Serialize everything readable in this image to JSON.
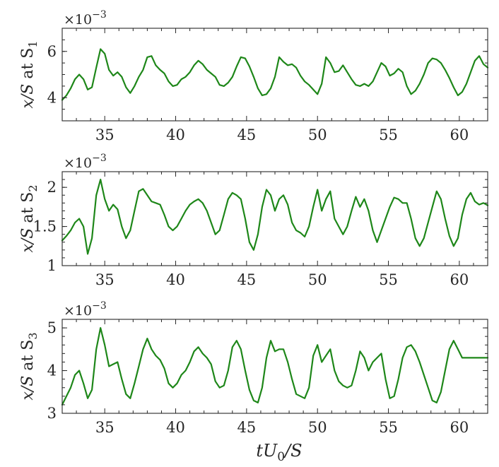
{
  "figure": {
    "xlabel_parts": [
      "tU",
      "0",
      "/S"
    ],
    "series_color": "#1e8719",
    "axis_color": "#262626"
  },
  "chart_data": [
    {
      "type": "line",
      "ylabel_parts": [
        "x/S",
        " at S",
        "1"
      ],
      "exponent_parts": [
        "×10",
        "−3"
      ],
      "xlim": [
        32,
        62
      ],
      "ylim": [
        3,
        7
      ],
      "x_ticks": [
        35,
        40,
        45,
        50,
        55,
        60
      ],
      "x_tick_labels": [
        "35",
        "40",
        "45",
        "50",
        "55",
        "60"
      ],
      "y_ticks": [
        4,
        6
      ],
      "y_tick_labels": [
        "4",
        "6"
      ],
      "grid": false,
      "x": [
        32.0,
        32.3,
        32.6,
        32.9,
        33.2,
        33.5,
        33.8,
        34.1,
        34.4,
        34.7,
        35.0,
        35.3,
        35.6,
        35.9,
        36.2,
        36.5,
        36.8,
        37.1,
        37.4,
        37.7,
        38.0,
        38.3,
        38.6,
        38.9,
        39.2,
        39.5,
        39.8,
        40.1,
        40.4,
        40.7,
        41.0,
        41.3,
        41.6,
        41.9,
        42.2,
        42.5,
        42.8,
        43.1,
        43.4,
        43.7,
        44.0,
        44.3,
        44.6,
        44.9,
        45.2,
        45.5,
        45.8,
        46.1,
        46.4,
        46.7,
        47.0,
        47.3,
        47.6,
        47.9,
        48.2,
        48.5,
        48.8,
        49.1,
        49.4,
        49.7,
        50.0,
        50.3,
        50.6,
        50.9,
        51.2,
        51.5,
        51.8,
        52.1,
        52.4,
        52.7,
        53.0,
        53.3,
        53.6,
        53.9,
        54.2,
        54.5,
        54.8,
        55.1,
        55.4,
        55.7,
        56.0,
        56.3,
        56.6,
        56.9,
        57.2,
        57.5,
        57.8,
        58.1,
        58.4,
        58.7,
        59.0,
        59.3,
        59.6,
        59.9,
        60.2,
        60.5,
        60.8,
        61.1,
        61.4,
        61.7,
        62.0
      ],
      "y": [
        3.9,
        4.1,
        4.4,
        4.8,
        5.0,
        4.8,
        4.35,
        4.45,
        5.3,
        6.1,
        5.9,
        5.2,
        4.95,
        5.1,
        4.9,
        4.45,
        4.2,
        4.5,
        4.9,
        5.2,
        5.75,
        5.8,
        5.4,
        5.2,
        5.05,
        4.7,
        4.5,
        4.55,
        4.8,
        4.9,
        5.1,
        5.4,
        5.6,
        5.45,
        5.2,
        5.05,
        4.9,
        4.55,
        4.5,
        4.65,
        4.9,
        5.35,
        5.75,
        5.7,
        5.35,
        4.9,
        4.4,
        4.1,
        4.15,
        4.4,
        4.9,
        5.75,
        5.55,
        5.4,
        5.45,
        5.3,
        4.95,
        4.7,
        4.55,
        4.35,
        4.15,
        4.6,
        5.75,
        5.5,
        5.1,
        5.15,
        5.4,
        5.1,
        4.8,
        4.55,
        4.5,
        4.6,
        4.5,
        4.7,
        5.1,
        5.5,
        5.35,
        4.95,
        5.05,
        5.25,
        5.1,
        4.5,
        4.15,
        4.3,
        4.6,
        5.0,
        5.5,
        5.7,
        5.65,
        5.5,
        5.2,
        4.85,
        4.45,
        4.1,
        4.25,
        4.6,
        5.1,
        5.6,
        5.8,
        5.45,
        5.3
      ]
    },
    {
      "type": "line",
      "ylabel_parts": [
        "x/S",
        " at S",
        "2"
      ],
      "exponent_parts": [
        "×10",
        "−3"
      ],
      "xlim": [
        32,
        62
      ],
      "ylim": [
        1,
        2.2
      ],
      "x_ticks": [
        35,
        40,
        45,
        50,
        55,
        60
      ],
      "x_tick_labels": [
        "35",
        "40",
        "45",
        "50",
        "55",
        "60"
      ],
      "y_ticks": [
        1,
        1.5,
        2
      ],
      "y_tick_labels": [
        "1",
        "1.5",
        "2"
      ],
      "grid": false,
      "x": [
        32.0,
        32.3,
        32.6,
        32.9,
        33.2,
        33.5,
        33.8,
        34.1,
        34.4,
        34.7,
        35.0,
        35.3,
        35.6,
        35.9,
        36.2,
        36.5,
        36.8,
        37.1,
        37.4,
        37.7,
        38.0,
        38.3,
        38.6,
        38.9,
        39.2,
        39.5,
        39.8,
        40.1,
        40.4,
        40.7,
        41.0,
        41.3,
        41.6,
        41.9,
        42.2,
        42.5,
        42.8,
        43.1,
        43.4,
        43.7,
        44.0,
        44.3,
        44.6,
        44.9,
        45.2,
        45.5,
        45.8,
        46.1,
        46.4,
        46.7,
        47.0,
        47.3,
        47.6,
        47.9,
        48.2,
        48.5,
        48.8,
        49.1,
        49.4,
        49.7,
        50.0,
        50.3,
        50.6,
        50.9,
        51.2,
        51.5,
        51.8,
        52.1,
        52.4,
        52.7,
        53.0,
        53.3,
        53.6,
        53.9,
        54.2,
        54.5,
        54.8,
        55.1,
        55.4,
        55.7,
        56.0,
        56.3,
        56.6,
        56.9,
        57.2,
        57.5,
        57.8,
        58.1,
        58.4,
        58.7,
        59.0,
        59.3,
        59.6,
        59.9,
        60.2,
        60.5,
        60.8,
        61.1,
        61.4,
        61.7,
        62.0
      ],
      "y": [
        1.32,
        1.38,
        1.45,
        1.55,
        1.6,
        1.5,
        1.15,
        1.35,
        1.9,
        2.1,
        1.85,
        1.7,
        1.78,
        1.72,
        1.5,
        1.35,
        1.45,
        1.7,
        1.95,
        1.98,
        1.9,
        1.82,
        1.8,
        1.78,
        1.65,
        1.5,
        1.45,
        1.5,
        1.6,
        1.7,
        1.78,
        1.82,
        1.85,
        1.8,
        1.7,
        1.55,
        1.4,
        1.45,
        1.65,
        1.85,
        1.93,
        1.9,
        1.85,
        1.6,
        1.3,
        1.2,
        1.4,
        1.75,
        1.97,
        1.9,
        1.7,
        1.85,
        1.9,
        1.78,
        1.55,
        1.45,
        1.42,
        1.37,
        1.5,
        1.75,
        1.97,
        1.7,
        1.85,
        1.95,
        1.6,
        1.5,
        1.4,
        1.5,
        1.7,
        1.88,
        1.75,
        1.85,
        1.7,
        1.45,
        1.3,
        1.45,
        1.6,
        1.75,
        1.87,
        1.85,
        1.8,
        1.8,
        1.6,
        1.35,
        1.25,
        1.35,
        1.55,
        1.75,
        1.95,
        1.85,
        1.6,
        1.38,
        1.25,
        1.35,
        1.65,
        1.85,
        1.93,
        1.82,
        1.78,
        1.8,
        1.77
      ]
    },
    {
      "type": "line",
      "ylabel_parts": [
        "x/S",
        " at S",
        "3"
      ],
      "exponent_parts": [
        "×10",
        "−3"
      ],
      "xlim": [
        32,
        62
      ],
      "ylim": [
        3,
        5.2
      ],
      "x_ticks": [
        35,
        40,
        45,
        50,
        55,
        60
      ],
      "x_tick_labels": [
        "35",
        "40",
        "45",
        "50",
        "55",
        "60"
      ],
      "y_ticks": [
        3,
        4,
        5
      ],
      "y_tick_labels": [
        "3",
        "4",
        "5"
      ],
      "grid": false,
      "x": [
        32.0,
        32.3,
        32.6,
        32.9,
        33.2,
        33.5,
        33.8,
        34.1,
        34.4,
        34.7,
        35.0,
        35.3,
        35.6,
        35.9,
        36.2,
        36.5,
        36.8,
        37.1,
        37.4,
        37.7,
        38.0,
        38.3,
        38.6,
        38.9,
        39.2,
        39.5,
        39.8,
        40.1,
        40.4,
        40.7,
        41.0,
        41.3,
        41.6,
        41.9,
        42.2,
        42.5,
        42.8,
        43.1,
        43.4,
        43.7,
        44.0,
        44.3,
        44.6,
        44.9,
        45.2,
        45.5,
        45.8,
        46.1,
        46.4,
        46.7,
        47.0,
        47.3,
        47.6,
        47.9,
        48.2,
        48.5,
        48.8,
        49.1,
        49.4,
        49.7,
        50.0,
        50.3,
        50.6,
        50.9,
        51.2,
        51.5,
        51.8,
        52.1,
        52.4,
        52.7,
        53.0,
        53.3,
        53.6,
        53.9,
        54.2,
        54.5,
        54.8,
        55.1,
        55.4,
        55.7,
        56.0,
        56.3,
        56.6,
        56.9,
        57.2,
        57.5,
        57.8,
        58.1,
        58.4,
        58.7,
        59.0,
        59.3,
        59.6,
        59.9,
        60.2,
        60.5,
        60.8,
        61.1,
        61.4,
        61.7,
        62.0
      ],
      "y": [
        3.2,
        3.4,
        3.6,
        3.9,
        4.0,
        3.7,
        3.35,
        3.55,
        4.5,
        5.0,
        4.6,
        4.1,
        4.15,
        4.2,
        3.8,
        3.45,
        3.35,
        3.7,
        4.1,
        4.5,
        4.75,
        4.5,
        4.35,
        4.25,
        4.05,
        3.7,
        3.6,
        3.7,
        3.9,
        4.0,
        4.2,
        4.45,
        4.55,
        4.4,
        4.3,
        4.15,
        3.75,
        3.6,
        3.65,
        4.0,
        4.55,
        4.7,
        4.5,
        4.0,
        3.55,
        3.3,
        3.25,
        3.6,
        4.3,
        4.7,
        4.45,
        4.5,
        4.5,
        4.2,
        3.8,
        3.45,
        3.4,
        3.35,
        3.6,
        4.35,
        4.6,
        4.2,
        4.35,
        4.5,
        4.0,
        3.75,
        3.65,
        3.6,
        3.65,
        4.0,
        4.45,
        4.3,
        4.0,
        4.2,
        4.3,
        4.4,
        3.8,
        3.35,
        3.4,
        3.8,
        4.3,
        4.55,
        4.6,
        4.45,
        4.2,
        3.9,
        3.6,
        3.3,
        3.25,
        3.5,
        4.0,
        4.5,
        4.7,
        4.5,
        4.3,
        4.3,
        4.3,
        4.3,
        4.3,
        4.3,
        4.3
      ]
    }
  ]
}
